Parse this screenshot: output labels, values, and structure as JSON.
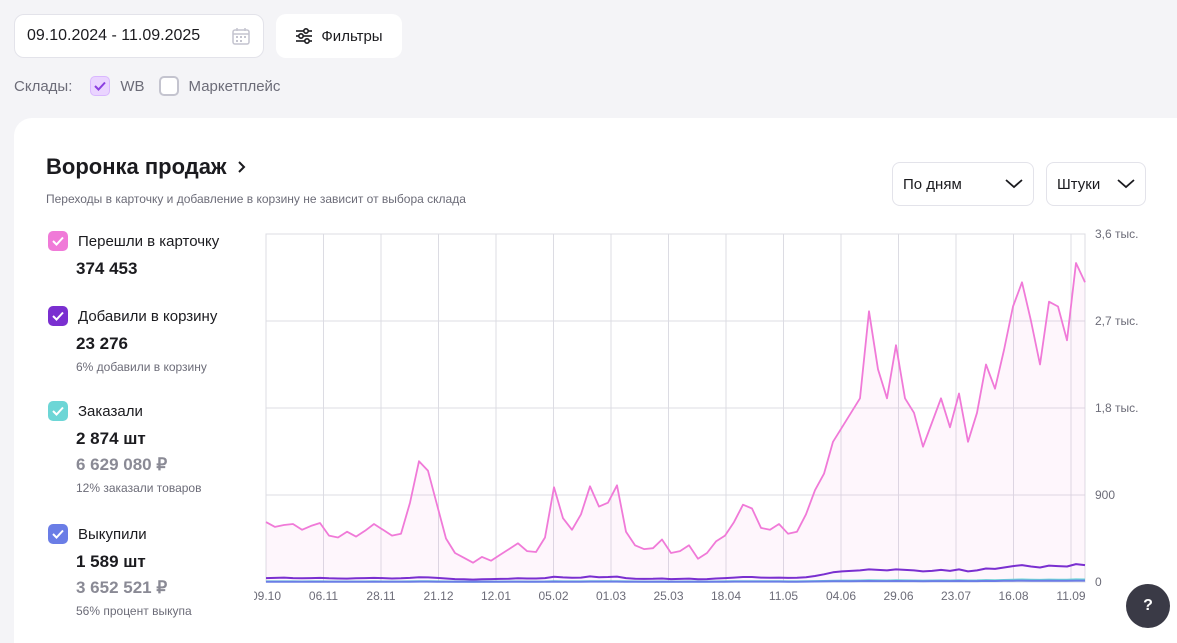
{
  "date_range": "09.10.2024 - 11.09.2025",
  "filters_label": "Фильтры",
  "warehouses": {
    "label": "Склады:",
    "items": [
      {
        "name": "WB",
        "checked": true
      },
      {
        "name": "Маркетплейс",
        "checked": false
      }
    ]
  },
  "card": {
    "title": "Воронка продаж",
    "subtitle": "Переходы в карточку и добавление в корзину не зависит от выбора склада",
    "period_select": "По дням",
    "units_select": "Штуки"
  },
  "legend": [
    {
      "label": "Перешли в карточку",
      "value": "374 453",
      "money": "",
      "note": "",
      "color": "#f07ad8"
    },
    {
      "label": "Добавили в корзину",
      "value": "23 276",
      "money": "",
      "note": "6% добавили в корзину",
      "color": "#7a2fd0"
    },
    {
      "label": "Заказали",
      "value": "2 874 шт",
      "money": "6 629 080 ₽",
      "note": "12% заказали товаров",
      "color": "#6dd6d6"
    },
    {
      "label": "Выкупили",
      "value": "1 589 шт",
      "money": "3 652 521 ₽",
      "note": "56% процент выкупа",
      "color": "#6a7de6"
    }
  ],
  "help_label": "?",
  "chart_data": {
    "type": "line",
    "x_ticks": [
      "09.10",
      "06.11",
      "28.11",
      "21.12",
      "12.01",
      "05.02",
      "01.03",
      "25.03",
      "18.04",
      "11.05",
      "04.06",
      "29.06",
      "23.07",
      "16.08",
      "11.09"
    ],
    "y_ticks": [
      "0",
      "900",
      "1,8 тыс.",
      "2,7 тыс.",
      "3,6 тыс."
    ],
    "ylim": [
      0,
      3600
    ],
    "grid": true,
    "series": [
      {
        "name": "Перешли в карточку",
        "color": "#f07ad8",
        "values": [
          620,
          570,
          590,
          600,
          540,
          580,
          610,
          480,
          460,
          520,
          470,
          530,
          600,
          540,
          480,
          500,
          820,
          1250,
          1150,
          800,
          450,
          300,
          250,
          200,
          260,
          220,
          280,
          340,
          400,
          320,
          310,
          460,
          980,
          660,
          540,
          700,
          990,
          780,
          820,
          1000,
          520,
          380,
          340,
          350,
          440,
          300,
          320,
          380,
          240,
          300,
          420,
          480,
          620,
          800,
          760,
          560,
          540,
          600,
          500,
          520,
          700,
          950,
          1120,
          1450,
          1600,
          1750,
          1900,
          2800,
          2200,
          1900,
          2450,
          1900,
          1750,
          1400,
          1650,
          1900,
          1600,
          1950,
          1450,
          1750,
          2250,
          2000,
          2400,
          2850,
          3100,
          2700,
          2250,
          2900,
          2850,
          2500,
          3300,
          3100
        ]
      },
      {
        "name": "Добавили в корзину",
        "color": "#7a2fd0",
        "values": [
          40,
          42,
          45,
          40,
          38,
          40,
          42,
          38,
          36,
          35,
          38,
          40,
          42,
          40,
          36,
          38,
          42,
          50,
          48,
          42,
          36,
          30,
          28,
          25,
          28,
          30,
          32,
          34,
          38,
          36,
          36,
          40,
          55,
          48,
          44,
          46,
          58,
          50,
          52,
          56,
          40,
          34,
          32,
          33,
          36,
          30,
          32,
          35,
          28,
          30,
          36,
          40,
          46,
          52,
          52,
          46,
          44,
          46,
          42,
          44,
          50,
          62,
          80,
          100,
          110,
          115,
          120,
          130,
          125,
          120,
          130,
          125,
          120,
          110,
          115,
          125,
          115,
          130,
          110,
          120,
          140,
          135,
          150,
          165,
          175,
          160,
          150,
          170,
          165,
          160,
          185,
          175
        ]
      },
      {
        "name": "Заказали",
        "color": "#6dd6d6",
        "values": [
          6,
          6,
          6,
          6,
          5,
          6,
          6,
          5,
          5,
          5,
          5,
          5,
          6,
          5,
          5,
          5,
          6,
          8,
          8,
          6,
          5,
          4,
          4,
          3,
          4,
          4,
          4,
          5,
          5,
          4,
          4,
          5,
          8,
          6,
          6,
          6,
          8,
          7,
          7,
          8,
          6,
          5,
          4,
          4,
          5,
          4,
          4,
          5,
          4,
          4,
          5,
          6,
          7,
          8,
          8,
          7,
          7,
          7,
          6,
          6,
          7,
          9,
          10,
          12,
          14,
          15,
          16,
          18,
          17,
          16,
          18,
          17,
          16,
          15,
          16,
          17,
          16,
          18,
          16,
          17,
          20,
          19,
          21,
          24,
          26,
          24,
          22,
          25,
          24,
          23,
          27,
          26
        ]
      },
      {
        "name": "Выкупили",
        "color": "#6a7de6",
        "values": [
          3,
          3,
          3,
          3,
          3,
          3,
          3,
          3,
          3,
          3,
          3,
          3,
          3,
          3,
          3,
          3,
          3,
          4,
          4,
          3,
          3,
          2,
          2,
          2,
          2,
          2,
          2,
          3,
          3,
          2,
          2,
          3,
          4,
          3,
          3,
          3,
          4,
          4,
          4,
          4,
          3,
          3,
          2,
          2,
          3,
          2,
          2,
          3,
          2,
          2,
          3,
          3,
          4,
          4,
          4,
          4,
          4,
          4,
          3,
          3,
          4,
          5,
          6,
          7,
          8,
          8,
          9,
          10,
          9,
          9,
          10,
          9,
          9,
          8,
          9,
          9,
          9,
          10,
          9,
          9,
          11,
          10,
          12,
          13,
          14,
          13,
          12,
          14,
          13,
          13,
          15,
          14
        ]
      }
    ]
  }
}
